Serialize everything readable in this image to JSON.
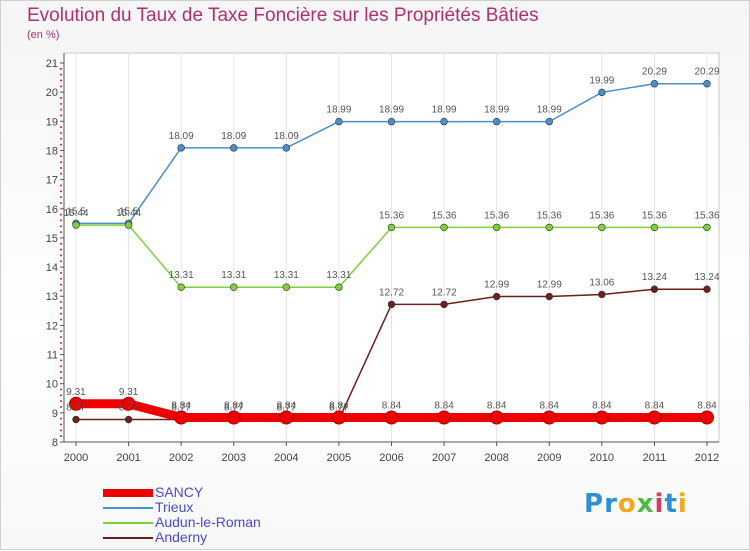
{
  "chart_data": {
    "type": "line",
    "title": "Evolution du Taux de Taxe Foncière sur les Propriétés Bâties",
    "unit_label": "(en %)",
    "x": [
      "2000",
      "2001",
      "2002",
      "2003",
      "2004",
      "2005",
      "2006",
      "2007",
      "2008",
      "2009",
      "2010",
      "2011",
      "2012"
    ],
    "ylim": [
      8,
      21
    ],
    "yticks": [
      "8",
      "9",
      "10",
      "11",
      "12",
      "13",
      "14",
      "15",
      "16",
      "17",
      "18",
      "19",
      "20",
      "21"
    ],
    "series": [
      {
        "name": "SANCY",
        "color": "#ee0000",
        "values": [
          9.31,
          9.31,
          8.84,
          8.84,
          8.84,
          8.84,
          8.84,
          8.84,
          8.84,
          8.84,
          8.84,
          8.84,
          8.84
        ],
        "labels": [
          "9.31",
          "9.31",
          "8.84",
          "8.84",
          "8.84",
          "8.84",
          "8.84",
          "8.84",
          "8.84",
          "8.84",
          "8.84",
          "8.84",
          "8.84"
        ]
      },
      {
        "name": "Trieux",
        "color": "#4a8fcf",
        "values": [
          15.5,
          15.5,
          18.09,
          18.09,
          18.09,
          18.99,
          18.99,
          18.99,
          18.99,
          18.99,
          19.99,
          20.29,
          20.29
        ],
        "labels": [
          "15.5",
          "15.5",
          "18.09",
          "18.09",
          "18.09",
          "18.99",
          "18.99",
          "18.99",
          "18.99",
          "18.99",
          "19.99",
          "20.29",
          "20.29"
        ]
      },
      {
        "name": "Audun-le-Roman",
        "color": "#7fd13b",
        "values": [
          15.44,
          15.44,
          13.31,
          13.31,
          13.31,
          13.31,
          15.36,
          15.36,
          15.36,
          15.36,
          15.36,
          15.36,
          15.36
        ],
        "labels": [
          "15.44",
          "15.44",
          "13.31",
          "13.31",
          "13.31",
          "13.31",
          "15.36",
          "15.36",
          "15.36",
          "15.36",
          "15.36",
          "15.36",
          "15.36"
        ]
      },
      {
        "name": "Anderny",
        "color": "#6b1f1f",
        "values": [
          8.77,
          8.77,
          8.77,
          8.77,
          8.77,
          8.77,
          12.72,
          12.72,
          12.99,
          12.99,
          13.06,
          13.24,
          13.24
        ],
        "labels": [
          "8.77",
          "8.77",
          "8.77",
          "8.77",
          "8.77",
          "8.77",
          "12.72",
          "12.72",
          "12.99",
          "12.99",
          "13.06",
          "13.24",
          "13.24"
        ]
      }
    ]
  },
  "legend": {
    "items": [
      {
        "name": "SANCY",
        "color": "#ee0000",
        "thickness": "thick"
      },
      {
        "name": "Trieux",
        "color": "#4a8fcf",
        "thickness": "thin"
      },
      {
        "name": "Audun-le-Roman",
        "color": "#7fd13b",
        "thickness": "thin"
      },
      {
        "name": "Anderny",
        "color": "#6b1f1f",
        "thickness": "thin"
      }
    ]
  },
  "logo": {
    "letters": [
      {
        "ch": "P",
        "color": "#2f8fd6"
      },
      {
        "ch": "r",
        "color": "#2f8fd6"
      },
      {
        "ch": "o",
        "color": "#f2a81d"
      },
      {
        "ch": "x",
        "color": "#4fb848"
      },
      {
        "ch": "i",
        "color": "#d0405a"
      },
      {
        "ch": "t",
        "color": "#2f8fd6"
      },
      {
        "ch": "i",
        "color": "#f2a81d"
      }
    ]
  }
}
